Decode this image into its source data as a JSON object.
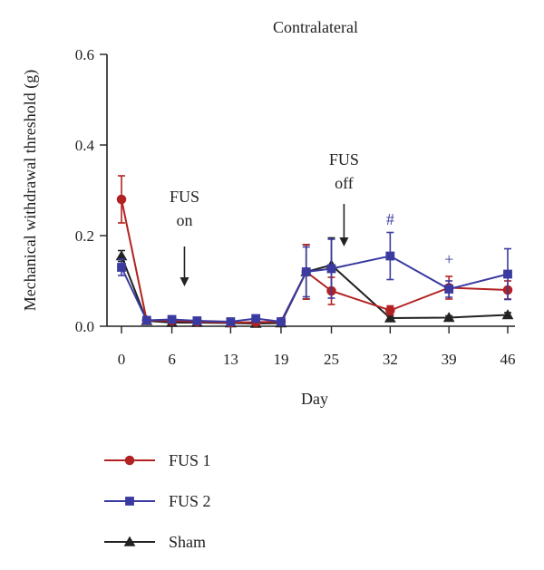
{
  "chart_data": {
    "type": "line",
    "title": "Contralateral",
    "xlabel": "Day",
    "ylabel": "Mechanical withdrawal threshold (g)",
    "x_tick_labels": [
      "0",
      "6",
      "13",
      "19",
      "25",
      "32",
      "39",
      "46"
    ],
    "y_tick_labels": [
      "0.0",
      "0.2",
      "0.4",
      "0.6"
    ],
    "ylim": [
      0,
      0.6
    ],
    "grid": false,
    "legend_position": "bottom-left",
    "annotations": [
      {
        "text": "FUS on",
        "lines": [
          "FUS",
          "on"
        ],
        "x": 7.5
      },
      {
        "text": "FUS off",
        "lines": [
          "FUS",
          "off"
        ],
        "x": 26.5
      }
    ],
    "markers": [
      {
        "text": "#",
        "x": 32,
        "color": "#3a3aa0"
      },
      {
        "text": "+",
        "x": 39,
        "color": "#3a3aa0"
      }
    ],
    "series": [
      {
        "name": "FUS 1",
        "color": "#b22222",
        "marker": "circle",
        "x": [
          0,
          3,
          6,
          9,
          13,
          16,
          19,
          22,
          25,
          32,
          39,
          46
        ],
        "values": [
          0.28,
          0.013,
          0.012,
          0.01,
          0.008,
          0.009,
          0.01,
          0.12,
          0.078,
          0.035,
          0.085,
          0.08
        ],
        "errors": [
          0.052,
          0.004,
          0.003,
          0.003,
          0.003,
          0.003,
          0.003,
          0.06,
          0.03,
          0.01,
          0.025,
          0.02
        ]
      },
      {
        "name": "FUS 2",
        "color": "#3a3aa0",
        "marker": "square",
        "x": [
          0,
          3,
          6,
          9,
          13,
          16,
          19,
          22,
          25,
          32,
          39,
          46
        ],
        "values": [
          0.13,
          0.013,
          0.015,
          0.012,
          0.01,
          0.017,
          0.01,
          0.12,
          0.127,
          0.155,
          0.082,
          0.115
        ],
        "errors": [
          0.018,
          0.004,
          0.003,
          0.003,
          0.003,
          0.004,
          0.003,
          0.055,
          0.065,
          0.052,
          0.018,
          0.056
        ]
      },
      {
        "name": "Sham",
        "color": "#222222",
        "marker": "triangle",
        "x": [
          0,
          3,
          6,
          9,
          13,
          16,
          19,
          22,
          25,
          32,
          39,
          46
        ],
        "values": [
          0.155,
          0.012,
          0.008,
          0.008,
          0.007,
          0.006,
          0.007,
          0.12,
          0.135,
          0.018,
          0.019,
          0.025
        ],
        "errors": [
          0.012,
          0.003,
          0.002,
          0.002,
          0.002,
          0.002,
          0.002,
          0.06,
          0.06,
          0.004,
          0.004,
          0.005
        ]
      }
    ]
  }
}
